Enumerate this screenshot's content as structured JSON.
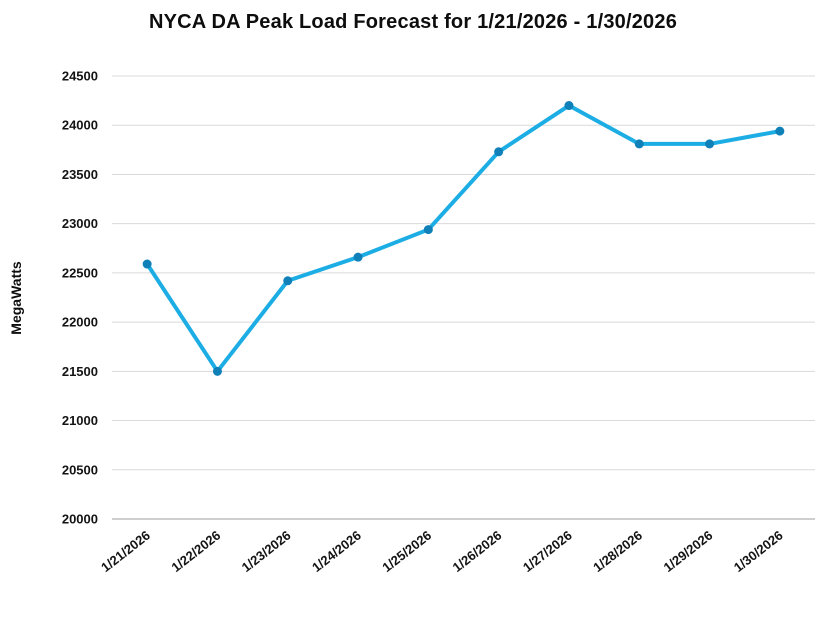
{
  "chart_data": {
    "type": "line",
    "title": "NYCA DA Peak Load Forecast for 1/21/2026 - 1/30/2026",
    "xlabel": "",
    "ylabel": "MegaWatts",
    "categories": [
      "1/21/2026",
      "1/22/2026",
      "1/23/2026",
      "1/24/2026",
      "1/25/2026",
      "1/26/2026",
      "1/27/2026",
      "1/28/2026",
      "1/29/2026",
      "1/30/2026"
    ],
    "values": [
      22590,
      21500,
      22420,
      22660,
      22940,
      23730,
      24200,
      23810,
      23810,
      23940
    ],
    "ylim": [
      20000,
      24500
    ],
    "ytick_step": 500,
    "grid": true,
    "legend": "none",
    "line_color": "#1CADE4",
    "marker_color": "#1080B8",
    "gridline_color": "#d9d9d9",
    "axis_line_color": "#9d9d9d"
  }
}
